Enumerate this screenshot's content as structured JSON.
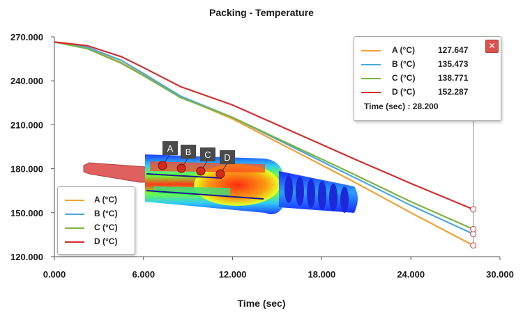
{
  "chart_data": {
    "type": "line",
    "title": "Packing - Temperature",
    "xlabel": "Time (sec)",
    "ylabel": "",
    "xlim": [
      0,
      30
    ],
    "ylim": [
      120,
      270
    ],
    "x_ticks": [
      "0.000",
      "6.000",
      "12.000",
      "18.000",
      "24.000",
      "30.000"
    ],
    "y_ticks": [
      "120.000",
      "150.000",
      "180.000",
      "210.000",
      "240.000",
      "270.000"
    ],
    "grid": false,
    "legend_position": "bottom-left",
    "series": [
      {
        "name": "A (°C)",
        "color": "#f5a031",
        "x": [
          0,
          2.2,
          4.5,
          6,
          8.5,
          12,
          16,
          20,
          24,
          28.2
        ],
        "y": [
          266.5,
          262.5,
          252.5,
          244,
          229,
          214,
          193,
          172,
          150,
          127.647
        ]
      },
      {
        "name": "B (°C)",
        "color": "#4aa8dc",
        "x": [
          0,
          2.2,
          4.5,
          6,
          8.5,
          12,
          16,
          20,
          24,
          28.2
        ],
        "y": [
          266.5,
          263,
          254,
          245,
          229.5,
          215,
          195,
          175,
          155,
          135.473
        ]
      },
      {
        "name": "C (°C)",
        "color": "#7cb342",
        "x": [
          0,
          2.2,
          4.5,
          6,
          8.5,
          12,
          16,
          20,
          24,
          28.2
        ],
        "y": [
          266.5,
          262,
          252,
          243.5,
          228.5,
          215,
          196,
          177,
          157.5,
          138.771
        ]
      },
      {
        "name": "D (°C)",
        "color": "#d32f2f",
        "x": [
          0,
          2.2,
          4.5,
          6,
          8.5,
          12,
          16,
          20,
          24,
          28.2
        ],
        "y": [
          266.5,
          264,
          256.5,
          249,
          236,
          223.5,
          205.5,
          187.5,
          170,
          152.287
        ]
      }
    ],
    "cursor": {
      "time_label": "Time (sec) : 28.200",
      "x": 28.2,
      "values": [
        "127.647",
        "135.473",
        "138.771",
        "152.287"
      ]
    },
    "probes": [
      "A",
      "B",
      "C",
      "D"
    ],
    "close_icon": "close-icon"
  }
}
